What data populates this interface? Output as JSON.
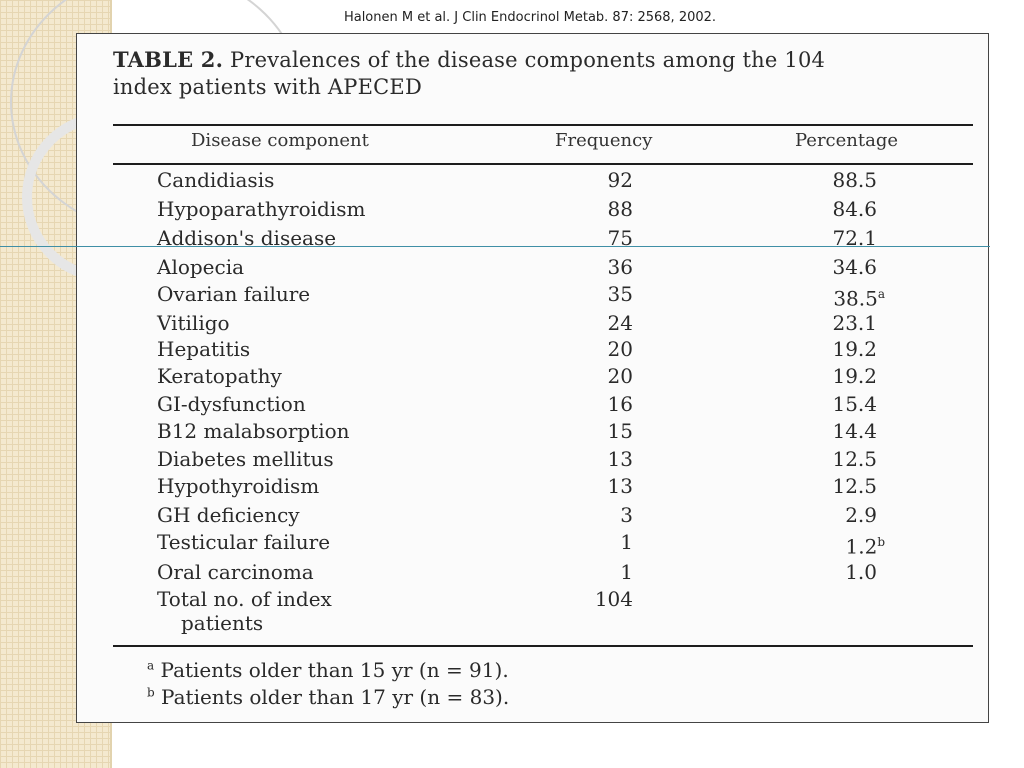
{
  "citation": "Halonen M et al. J Clin Endocrinol Metab. 87: 2568, 2002.",
  "table": {
    "label": "TABLE 2.",
    "caption_line1": "Prevalences of the disease components among the 104",
    "caption_line2": "index patients with APECED",
    "headers": {
      "component": "Disease component",
      "frequency": "Frequency",
      "percentage": "Percentage"
    },
    "rows": [
      {
        "component": "Candidiasis",
        "frequency": "92",
        "percentage": "88.5",
        "mark": ""
      },
      {
        "component": "Hypoparathyroidism",
        "frequency": "88",
        "percentage": "84.6",
        "mark": ""
      },
      {
        "component": "Addison's disease",
        "frequency": "75",
        "percentage": "72.1",
        "mark": ""
      },
      {
        "component": "Alopecia",
        "frequency": "36",
        "percentage": "34.6",
        "mark": ""
      },
      {
        "component": "Ovarian failure",
        "frequency": "35",
        "percentage": "38.5",
        "mark": "a"
      },
      {
        "component": "Vitiligo",
        "frequency": "24",
        "percentage": "23.1",
        "mark": ""
      },
      {
        "component": "Hepatitis",
        "frequency": "20",
        "percentage": "19.2",
        "mark": ""
      },
      {
        "component": "Keratopathy",
        "frequency": "20",
        "percentage": "19.2",
        "mark": ""
      },
      {
        "component": "GI-dysfunction",
        "frequency": "16",
        "percentage": "15.4",
        "mark": ""
      },
      {
        "component": "B12 malabsorption",
        "frequency": "15",
        "percentage": "14.4",
        "mark": ""
      },
      {
        "component": "Diabetes mellitus",
        "frequency": "13",
        "percentage": "12.5",
        "mark": ""
      },
      {
        "component": "Hypothyroidism",
        "frequency": "13",
        "percentage": "12.5",
        "mark": ""
      },
      {
        "component": "GH deficiency",
        "frequency": "3",
        "percentage": "2.9",
        "mark": ""
      },
      {
        "component": "Testicular failure",
        "frequency": "1",
        "percentage": "1.2",
        "mark": "b"
      },
      {
        "component": "Oral carcinoma",
        "frequency": "1",
        "percentage": "1.0",
        "mark": ""
      }
    ],
    "total": {
      "line1": "Total no. of index",
      "line2": "patients",
      "frequency": "104"
    },
    "footnotes": [
      {
        "mark": "a",
        "text": "Patients older than 15 yr (n = 91)."
      },
      {
        "mark": "b",
        "text": "Patients older than 17 yr (n = 83)."
      }
    ]
  }
}
